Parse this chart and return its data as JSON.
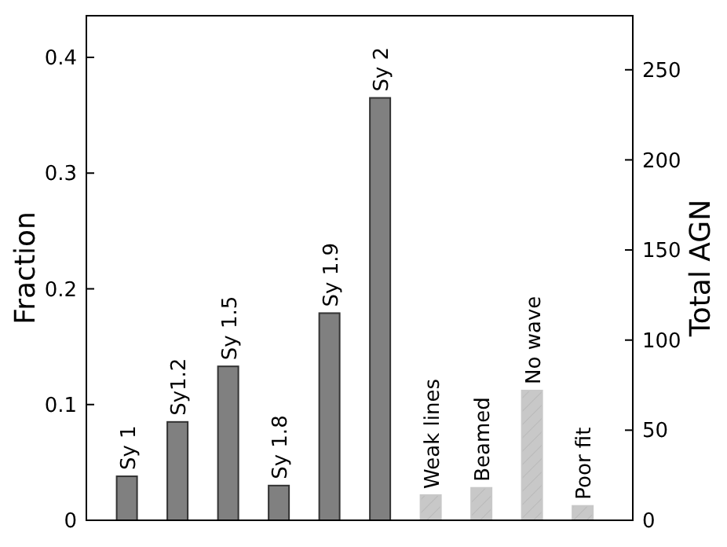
{
  "chart_data": {
    "type": "bar",
    "ylabel": "Fraction",
    "y2label": "Total AGN",
    "categories": [
      "Sy 1",
      "Sy1.2",
      "Sy 1.5",
      "Sy 1.8",
      "Sy 1.9",
      "Sy 2",
      "Weak lines",
      "Beamed",
      "No wave",
      "Poor fit"
    ],
    "series": [
      {
        "color": "#808080",
        "values": [
          0.038,
          0.085,
          0.133,
          0.03,
          0.179,
          0.365,
          null,
          null,
          null,
          null
        ]
      },
      {
        "color": "#c8c8c8",
        "axis": "y2",
        "values": [
          null,
          null,
          null,
          null,
          null,
          null,
          14,
          18,
          72,
          8
        ]
      }
    ],
    "ylim": [
      0,
      0.436
    ],
    "yticks": [
      0,
      0.1,
      0.2,
      0.3,
      0.4
    ],
    "y2lim": [
      0,
      280
    ],
    "y2ticks": [
      0,
      50,
      100,
      150,
      200,
      250
    ],
    "grid": false
  }
}
